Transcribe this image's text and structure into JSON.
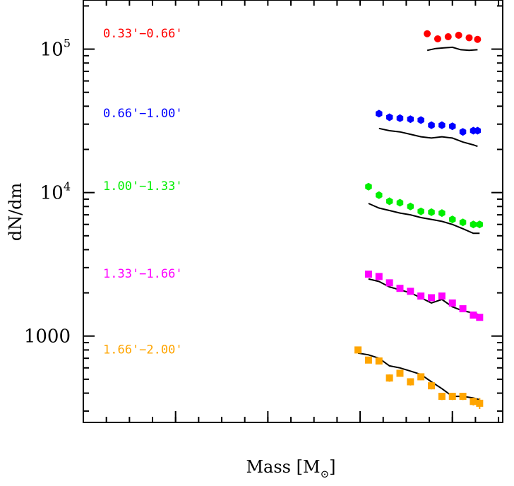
{
  "chart_data": {
    "type": "scatter",
    "title": "",
    "xlabel": "Mass [M",
    "xlabel_subscript": "⊙",
    "xlabel_close": "]",
    "ylabel": "dN/dm",
    "yscale": "log",
    "ylim": [
      250,
      220000
    ],
    "xlim": [
      0,
      1
    ],
    "grid": false,
    "yticks": [
      {
        "value": 1000,
        "label": "1000",
        "sup": ""
      },
      {
        "value": 10000,
        "label": "10",
        "sup": "4"
      },
      {
        "value": 100000,
        "label": "10",
        "sup": "5"
      }
    ],
    "series": [
      {
        "name": "0.33'−0.66'",
        "color": "#ff0000",
        "x": [
          0.82,
          0.845,
          0.87,
          0.895,
          0.92,
          0.94
        ],
        "y": [
          128000,
          118000,
          122000,
          125000,
          120000,
          117000
        ],
        "model_x": [
          0.82,
          0.84,
          0.86,
          0.88,
          0.9,
          0.92,
          0.94
        ],
        "model_y": [
          98000,
          101000,
          102000,
          103000,
          99000,
          98000,
          99000
        ]
      },
      {
        "name": "0.66'−1.00'",
        "color": "#0000ff",
        "x": [
          0.705,
          0.73,
          0.755,
          0.78,
          0.805,
          0.83,
          0.855,
          0.88,
          0.905,
          0.93,
          0.94
        ],
        "y": [
          35500,
          33500,
          33000,
          32500,
          32000,
          29500,
          29500,
          29000,
          26500,
          27000,
          27000
        ],
        "model_x": [
          0.705,
          0.73,
          0.755,
          0.78,
          0.805,
          0.83,
          0.855,
          0.88,
          0.905,
          0.93,
          0.94
        ],
        "model_y": [
          28000,
          27000,
          26500,
          25500,
          24500,
          24000,
          24500,
          24000,
          22500,
          21500,
          21000
        ]
      },
      {
        "name": "1.00'−1.33'",
        "color": "#00ee00",
        "x": [
          0.68,
          0.705,
          0.73,
          0.755,
          0.78,
          0.805,
          0.83,
          0.855,
          0.88,
          0.905,
          0.93,
          0.945
        ],
        "y": [
          11000,
          9600,
          8700,
          8500,
          8000,
          7400,
          7300,
          7200,
          6500,
          6200,
          6000,
          6000
        ],
        "model_x": [
          0.68,
          0.705,
          0.73,
          0.755,
          0.78,
          0.805,
          0.83,
          0.855,
          0.88,
          0.905,
          0.93,
          0.945
        ],
        "model_y": [
          8400,
          7800,
          7500,
          7200,
          7000,
          6700,
          6500,
          6300,
          6000,
          5600,
          5200,
          5200
        ]
      },
      {
        "name": "1.33'−1.66'",
        "color": "#ff00ff",
        "x": [
          0.68,
          0.705,
          0.73,
          0.755,
          0.78,
          0.805,
          0.83,
          0.855,
          0.88,
          0.905,
          0.93,
          0.945
        ],
        "y": [
          2700,
          2600,
          2350,
          2150,
          2050,
          1900,
          1850,
          1900,
          1700,
          1550,
          1400,
          1350
        ],
        "model_x": [
          0.68,
          0.705,
          0.73,
          0.755,
          0.78,
          0.805,
          0.83,
          0.855,
          0.88,
          0.905,
          0.93,
          0.945
        ],
        "model_y": [
          2500,
          2400,
          2200,
          2100,
          2000,
          1850,
          1700,
          1800,
          1600,
          1500,
          1450,
          1400
        ]
      },
      {
        "name": "1.66'−2.00'",
        "color": "#ffa500",
        "x": [
          0.655,
          0.68,
          0.705,
          0.73,
          0.755,
          0.78,
          0.805,
          0.83,
          0.855,
          0.88,
          0.905,
          0.93,
          0.945
        ],
        "y": [
          800,
          680,
          670,
          510,
          550,
          480,
          520,
          450,
          380,
          380,
          380,
          350,
          340
        ],
        "yerr": [
          25,
          30,
          30,
          30,
          30,
          28,
          28,
          25,
          22,
          22,
          22,
          22,
          30
        ],
        "model_x": [
          0.655,
          0.68,
          0.705,
          0.73,
          0.755,
          0.78,
          0.805,
          0.83,
          0.855,
          0.88,
          0.905,
          0.93,
          0.945
        ],
        "model_y": [
          760,
          740,
          700,
          620,
          600,
          570,
          540,
          480,
          430,
          380,
          380,
          370,
          360
        ]
      }
    ]
  }
}
